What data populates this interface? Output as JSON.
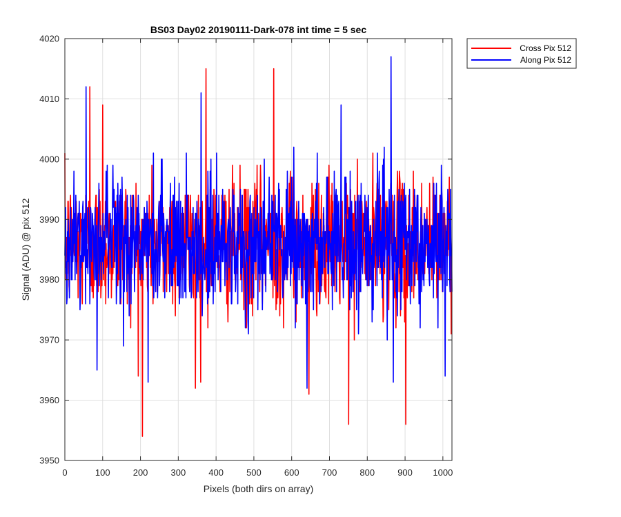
{
  "chart_data": {
    "type": "line",
    "title": "BS03 Day02 20190111-Dark-078 int time = 5 sec",
    "xlabel": "Pixels (both dirs on array)",
    "ylabel": "Signal (ADU) @ pix 512",
    "xlim": [
      0,
      1024
    ],
    "ylim": [
      3950,
      4020
    ],
    "xticks": [
      0,
      100,
      200,
      300,
      400,
      500,
      600,
      700,
      800,
      900,
      1000
    ],
    "yticks": [
      3950,
      3960,
      3970,
      3980,
      3990,
      4000,
      4010,
      4020
    ],
    "xtick_labels": [
      "0",
      "100",
      "200",
      "300",
      "400",
      "500",
      "600",
      "700",
      "800",
      "900",
      "1000"
    ],
    "ytick_labels": [
      "3950",
      "3960",
      "3970",
      "3980",
      "3990",
      "4000",
      "4010",
      "4020"
    ],
    "grid": true,
    "legend_position": "outside-top-right",
    "series": [
      {
        "name": "Cross Pix 512",
        "color": "#ff0000",
        "noise": {
          "n_points": 1024,
          "mean": 3986,
          "std": 5.5,
          "min": 3954,
          "max": 4015
        },
        "notable_points": [
          {
            "x": 205,
            "y": 3954
          },
          {
            "x": 373,
            "y": 4015
          },
          {
            "x": 552,
            "y": 4015
          },
          {
            "x": 66,
            "y": 4012
          },
          {
            "x": 750,
            "y": 3956
          },
          {
            "x": 901,
            "y": 3956
          },
          {
            "x": 645,
            "y": 3961
          },
          {
            "x": 345,
            "y": 3962
          },
          {
            "x": 100,
            "y": 4009
          }
        ]
      },
      {
        "name": "Along Pix 512",
        "color": "#0000ff",
        "noise": {
          "n_points": 1024,
          "mean": 3986,
          "std": 5.5,
          "min": 3962,
          "max": 4017
        },
        "notable_points": [
          {
            "x": 862,
            "y": 4017
          },
          {
            "x": 56,
            "y": 4012
          },
          {
            "x": 360,
            "y": 4011
          },
          {
            "x": 730,
            "y": 4009
          },
          {
            "x": 640,
            "y": 3962
          },
          {
            "x": 868,
            "y": 3963
          },
          {
            "x": 220,
            "y": 3963
          },
          {
            "x": 1005,
            "y": 3964
          },
          {
            "x": 85,
            "y": 3965
          }
        ]
      }
    ]
  }
}
